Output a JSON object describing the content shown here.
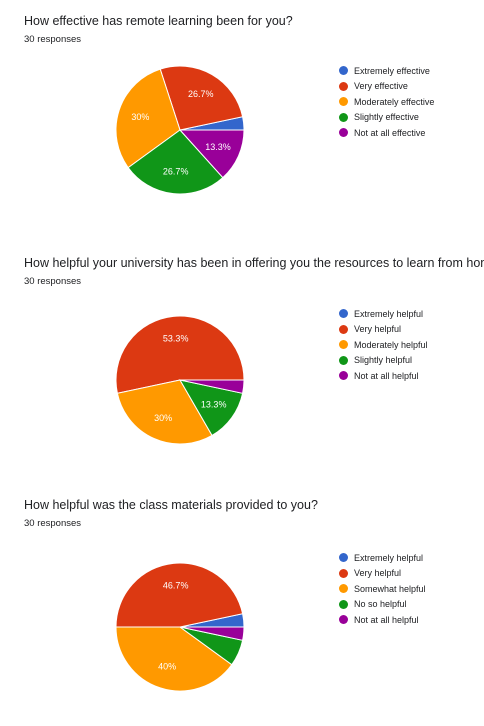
{
  "colors": {
    "blue": "#3366cc",
    "red": "#dc3912",
    "orange": "#ff9900",
    "green": "#109618",
    "purple": "#990099"
  },
  "chart_data": [
    {
      "type": "pie",
      "title": "How effective has remote learning been for you?",
      "subtitle": "30 responses",
      "legend_position": "right",
      "slices": [
        {
          "label": "Extremely effective",
          "value": 1,
          "percent_label": "",
          "color": "#3366cc"
        },
        {
          "label": "Very effective",
          "value": 8,
          "percent_label": "26.7%",
          "color": "#dc3912"
        },
        {
          "label": "Moderately effective",
          "value": 9,
          "percent_label": "30%",
          "color": "#ff9900"
        },
        {
          "label": "Slightly effective",
          "value": 8,
          "percent_label": "26.7%",
          "color": "#109618"
        },
        {
          "label": "Not at all effective",
          "value": 4,
          "percent_label": "13.3%",
          "color": "#990099"
        }
      ]
    },
    {
      "type": "pie",
      "title": "How helpful your university has been in offering you the resources to learn from home?",
      "subtitle": "30 responses",
      "legend_position": "right",
      "slices": [
        {
          "label": "Extremely helpful",
          "value": 0,
          "percent_label": "",
          "color": "#3366cc"
        },
        {
          "label": "Very helpful",
          "value": 16,
          "percent_label": "53.3%",
          "color": "#dc3912"
        },
        {
          "label": "Moderately helpful",
          "value": 9,
          "percent_label": "30%",
          "color": "#ff9900"
        },
        {
          "label": "Slightly helpful",
          "value": 4,
          "percent_label": "13.3%",
          "color": "#109618"
        },
        {
          "label": "Not at all helpful",
          "value": 1,
          "percent_label": "",
          "color": "#990099"
        }
      ]
    },
    {
      "type": "pie",
      "title": "How helpful was the class materials provided to you?",
      "subtitle": "30 responses",
      "legend_position": "right",
      "slices": [
        {
          "label": "Extremely helpful",
          "value": 1,
          "percent_label": "",
          "color": "#3366cc"
        },
        {
          "label": "Very helpful",
          "value": 14,
          "percent_label": "46.7%",
          "color": "#dc3912"
        },
        {
          "label": "Somewhat helpful",
          "value": 12,
          "percent_label": "40%",
          "color": "#ff9900"
        },
        {
          "label": "No so helpful",
          "value": 2,
          "percent_label": "",
          "color": "#109618"
        },
        {
          "label": "Not at all helpful",
          "value": 1,
          "percent_label": "",
          "color": "#990099"
        }
      ]
    }
  ]
}
